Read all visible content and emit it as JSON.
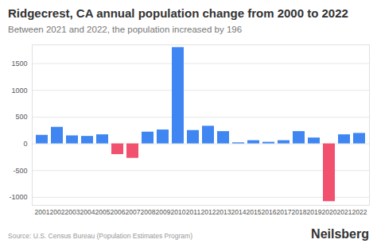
{
  "chart_data": {
    "type": "bar",
    "title": "Ridgecrest, CA annual population change from 2000 to 2022",
    "subtitle": "Between 2021 and 2022, the population increased by 196",
    "source": "Source: U.S. Census Bureau (Population Estimates Program)",
    "brand": "Neilsberg",
    "categories": [
      "2001",
      "2002",
      "2003",
      "2004",
      "2005",
      "2006",
      "2007",
      "2008",
      "2009",
      "2010",
      "2011",
      "2012",
      "2013",
      "2014",
      "2015",
      "2016",
      "2017",
      "2018",
      "2019",
      "2020",
      "2021",
      "2022"
    ],
    "values": [
      160,
      310,
      150,
      140,
      170,
      -200,
      -270,
      220,
      260,
      1800,
      250,
      330,
      230,
      20,
      60,
      30,
      60,
      230,
      110,
      -1080,
      170,
      196
    ],
    "colors": [
      "#3f86f2",
      "#3f86f2",
      "#3f86f2",
      "#3f86f2",
      "#3f86f2",
      "#f2506f",
      "#f2506f",
      "#3f86f2",
      "#3f86f2",
      "#3f86f2",
      "#3f86f2",
      "#3f86f2",
      "#3f86f2",
      "#3f86f2",
      "#3f86f2",
      "#3f86f2",
      "#3f86f2",
      "#3f86f2",
      "#3f86f2",
      "#f2506f",
      "#3f86f2",
      "#3f86f2"
    ],
    "ylim": [
      -1150,
      1850
    ],
    "yticks": [
      -1000,
      -500,
      0,
      500,
      1000,
      1500
    ],
    "grid": true
  }
}
